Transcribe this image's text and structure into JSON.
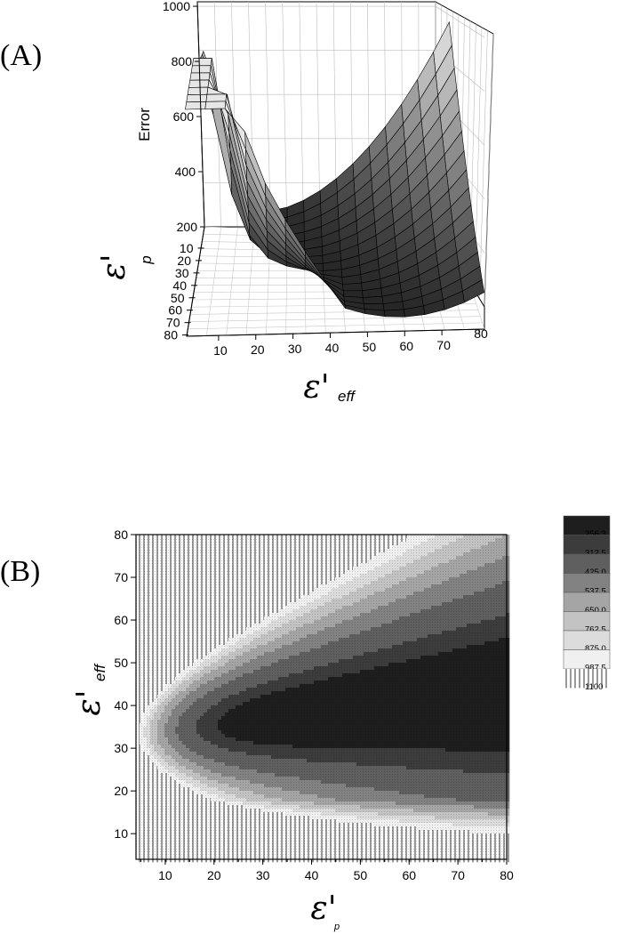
{
  "panels": {
    "a_label": "(A)",
    "b_label": "(B)"
  },
  "chart_data": [
    {
      "type": "surface3d",
      "panel": "(A)",
      "zlabel": "Error",
      "xlabel_sym": "ε'",
      "xlabel_sub": "eff",
      "ylabel_sym": "ε'",
      "ylabel_sub": "p",
      "zticks": [
        "200",
        "400",
        "600",
        "800",
        "1000"
      ],
      "xticks": [
        "10",
        "20",
        "30",
        "40",
        "50",
        "60",
        "70",
        "80"
      ],
      "yticks": [
        "10",
        "20",
        "30",
        "40",
        "50",
        "60",
        "70",
        "80"
      ],
      "zlim": [
        200,
        1000
      ],
      "xlim": [
        5,
        80
      ],
      "ylim": [
        5,
        80
      ],
      "grid": true,
      "shading": "grayscale"
    },
    {
      "type": "contour",
      "panel": "(B)",
      "xlabel_sym": "ε'",
      "xlabel_sub": "p",
      "ylabel_sym": "ε'",
      "ylabel_sub": "eff",
      "xticks": [
        "10",
        "20",
        "30",
        "40",
        "50",
        "60",
        "70",
        "80"
      ],
      "yticks": [
        "10",
        "20",
        "30",
        "40",
        "50",
        "60",
        "70",
        "80"
      ],
      "xlim": [
        4,
        80
      ],
      "ylim": [
        4,
        80
      ],
      "levels": [
        {
          "label": "256.3",
          "color": "#1e1e1e"
        },
        {
          "label": "312.5",
          "color": "#3c3c3c"
        },
        {
          "label": "425.0",
          "color": "#5f5f5f"
        },
        {
          "label": "537.5",
          "color": "#828282"
        },
        {
          "label": "650.0",
          "color": "#a5a5a5"
        },
        {
          "label": "762.5",
          "color": "#c3c3c3"
        },
        {
          "label": "875.0",
          "color": "#dcdcdc"
        },
        {
          "label": "987.5",
          "color": "#f0f0f0"
        },
        {
          "label": "1100",
          "color": "hatch"
        }
      ]
    }
  ]
}
